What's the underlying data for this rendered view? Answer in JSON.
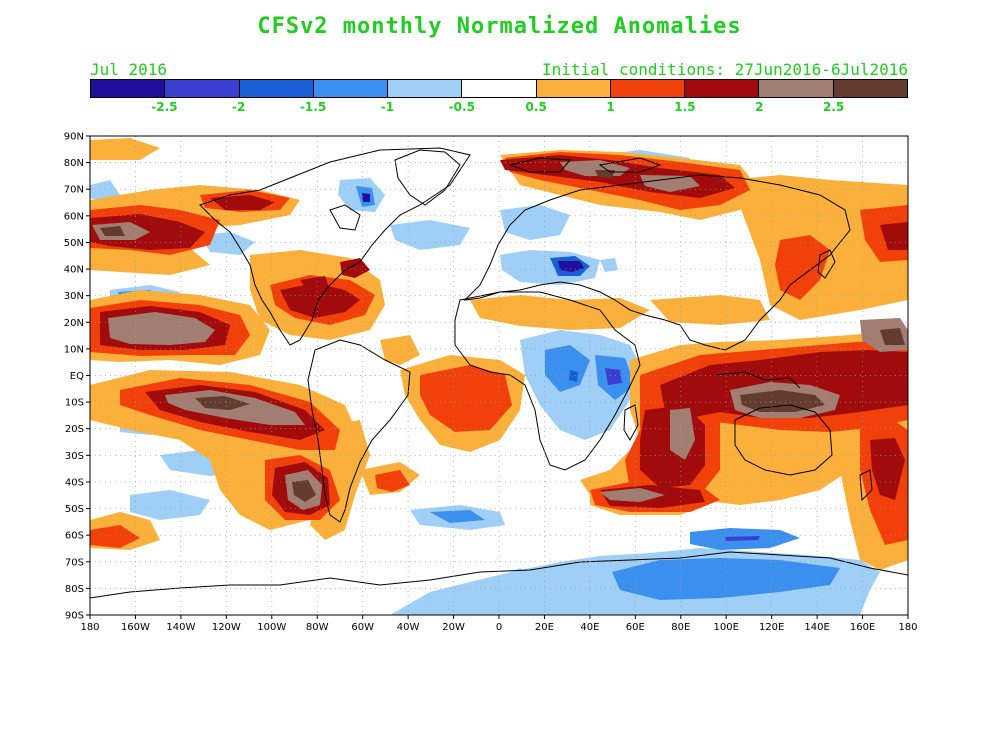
{
  "title": "CFSv2 monthly Normalized Anomalies",
  "valid_month": "Jul 2016",
  "initial_conditions": "Initial conditions: 27Jun2016-6Jul2016",
  "colorbar": {
    "colors": [
      "#1f0f9a",
      "#3b3fcf",
      "#1b5fd6",
      "#3b8fef",
      "#9fcff6",
      "#ffffff",
      "#fbb03b",
      "#f2400a",
      "#a20b0b",
      "#a27e72",
      "#633c2f"
    ],
    "labels": [
      "-2.5",
      "-2",
      "-1.5",
      "-1",
      "-0.5",
      "0.5",
      "1",
      "1.5",
      "2",
      "2.5"
    ]
  },
  "axes": {
    "lat_labels": [
      "90N",
      "80N",
      "70N",
      "60N",
      "50N",
      "40N",
      "30N",
      "20N",
      "10N",
      "EQ",
      "10S",
      "20S",
      "30S",
      "40S",
      "50S",
      "60S",
      "70S",
      "80S",
      "90S"
    ],
    "lon_labels": [
      "180",
      "160W",
      "140W",
      "120W",
      "100W",
      "80W",
      "60W",
      "40W",
      "20W",
      "0",
      "20E",
      "40E",
      "60E",
      "80E",
      "100E",
      "120E",
      "140E",
      "160E",
      "180"
    ]
  },
  "map_data": {
    "type": "global contour map",
    "projection": "equirectangular",
    "lon_range": [
      -180,
      180
    ],
    "lat_range": [
      -90,
      90
    ],
    "dotted_grid": true,
    "features": [
      {
        "region": "tropical western Pacific / Maritime Continent",
        "anomaly": "positive",
        "max_level": 2.5
      },
      {
        "region": "southern Indian Ocean",
        "anomaly": "positive",
        "max_level": 2.5
      },
      {
        "region": "southeast Pacific off South America",
        "anomaly": "positive",
        "max_level": 2.5
      },
      {
        "region": "central south Pacific",
        "anomaly": "positive",
        "max_level": 2.5
      },
      {
        "region": "northeast Pacific",
        "anomaly": "positive",
        "max_level": 2.5
      },
      {
        "region": "Gulf of Alaska",
        "anomaly": "positive",
        "max_level": 2.5
      },
      {
        "region": "eastern United States",
        "anomaly": "positive",
        "max_level": 2.5
      },
      {
        "region": "Arctic north of Siberia",
        "anomaly": "positive",
        "max_level": 2.5
      },
      {
        "region": "Central Africa and East Africa",
        "anomaly": "negative",
        "min_level": -2.5
      },
      {
        "region": "Black Sea region",
        "anomaly": "negative",
        "min_level": -2.5
      },
      {
        "region": "Antarctica",
        "anomaly": "negative",
        "min_level": -1.5
      },
      {
        "region": "Southern Ocean south of Australia",
        "anomaly": "negative",
        "min_level": -2
      }
    ]
  }
}
